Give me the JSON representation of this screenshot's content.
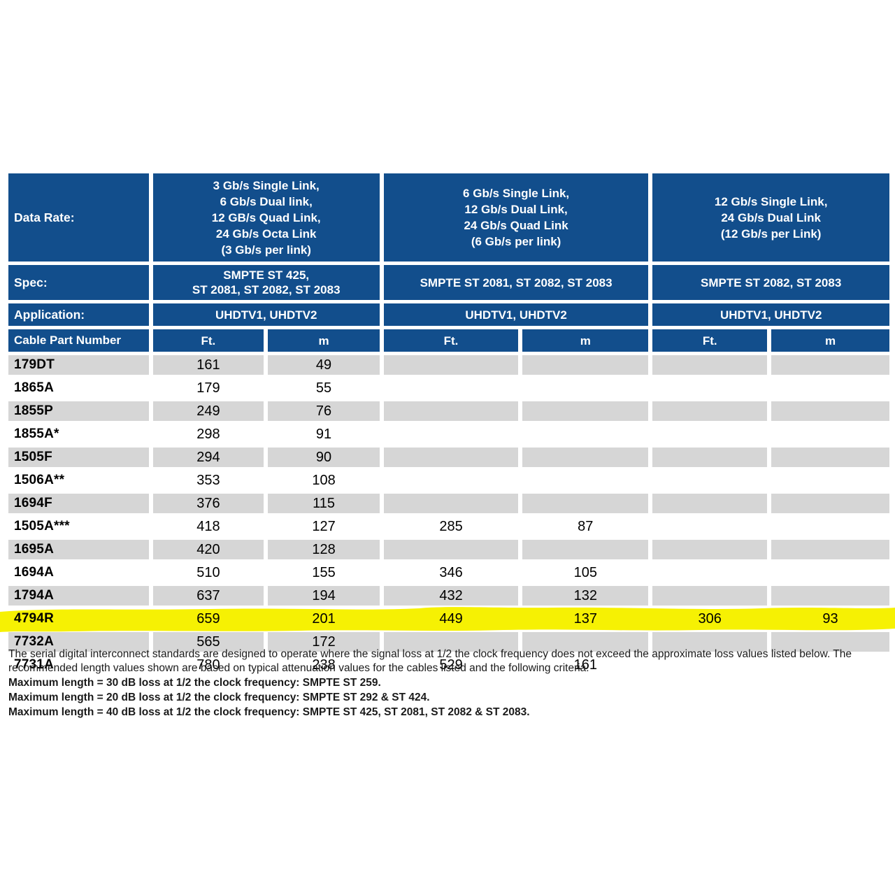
{
  "colors": {
    "header_blue": "#124E8C",
    "shaded_row_gray": "#D6D6D6",
    "highlight_yellow": "#F6F103",
    "header_text": "#FFFFFF",
    "body_text": "#000000"
  },
  "table": {
    "row_headers": {
      "data_rate": "Data Rate:",
      "spec": "Spec:",
      "application": "Application:",
      "cable_part_number": "Cable Part Number"
    },
    "unit_headers": {
      "ft": "Ft.",
      "m": "m"
    },
    "groups": [
      {
        "data_rate": "3 Gb/s Single Link,\n6 Gb/s Dual link,\n12 GB/s Quad Link,\n24 Gb/s Octa Link\n(3 Gb/s per link)",
        "spec": "SMPTE ST 425,\nST 2081, ST 2082, ST 2083",
        "application": "UHDTV1, UHDTV2"
      },
      {
        "data_rate": "6 Gb/s Single Link,\n12 Gb/s Dual Link,\n24 Gb/s Quad Link\n(6 Gb/s per link)",
        "spec": "SMPTE ST 2081, ST 2082, ST 2083",
        "application": "UHDTV1, UHDTV2"
      },
      {
        "data_rate": "12 Gb/s Single Link,\n24 Gb/s Dual Link\n(12 Gb/s per Link)",
        "spec": "SMPTE ST 2082, ST 2083",
        "application": "UHDTV1, UHDTV2"
      }
    ],
    "rows": [
      {
        "part": "179DT",
        "values": [
          "161",
          "49",
          "",
          "",
          "",
          ""
        ],
        "highlighted": false
      },
      {
        "part": "1865A",
        "values": [
          "179",
          "55",
          "",
          "",
          "",
          ""
        ],
        "highlighted": false
      },
      {
        "part": "1855P",
        "values": [
          "249",
          "76",
          "",
          "",
          "",
          ""
        ],
        "highlighted": false
      },
      {
        "part": "1855A*",
        "values": [
          "298",
          "91",
          "",
          "",
          "",
          ""
        ],
        "highlighted": false
      },
      {
        "part": "1505F",
        "values": [
          "294",
          "90",
          "",
          "",
          "",
          ""
        ],
        "highlighted": false
      },
      {
        "part": "1506A**",
        "values": [
          "353",
          "108",
          "",
          "",
          "",
          ""
        ],
        "highlighted": false
      },
      {
        "part": "1694F",
        "values": [
          "376",
          "115",
          "",
          "",
          "",
          ""
        ],
        "highlighted": false
      },
      {
        "part": "1505A***",
        "values": [
          "418",
          "127",
          "285",
          "87",
          "",
          ""
        ],
        "highlighted": false
      },
      {
        "part": "1695A",
        "values": [
          "420",
          "128",
          "",
          "",
          "",
          ""
        ],
        "highlighted": false
      },
      {
        "part": "1694A",
        "values": [
          "510",
          "155",
          "346",
          "105",
          "",
          ""
        ],
        "highlighted": false
      },
      {
        "part": "1794A",
        "values": [
          "637",
          "194",
          "432",
          "132",
          "",
          ""
        ],
        "highlighted": false
      },
      {
        "part": "4794R",
        "values": [
          "659",
          "201",
          "449",
          "137",
          "306",
          "93"
        ],
        "highlighted": true
      },
      {
        "part": "7732A",
        "values": [
          "565",
          "172",
          "",
          "",
          "",
          ""
        ],
        "highlighted": false
      },
      {
        "part": "7731A",
        "values": [
          "780",
          "238",
          "529",
          "161",
          "",
          ""
        ],
        "highlighted": false
      }
    ]
  },
  "notes": {
    "intro": "The serial digital interconnect standards are designed to operate where the signal loss at 1/2 the clock frequency does not exceed the approximate loss values listed below. The recommended length values shown are based on typical attenuation values for the cables listed and the following criteria:",
    "criteria": [
      "Maximum length = 30 dB loss at 1/2 the clock frequency: SMPTE ST 259.",
      "Maximum length = 20 dB loss at 1/2 the clock frequency: SMPTE ST 292 & ST 424.",
      "Maximum length = 40 dB loss at 1/2 the clock frequency: SMPTE ST 425, ST 2081, ST 2082 & ST 2083."
    ]
  }
}
